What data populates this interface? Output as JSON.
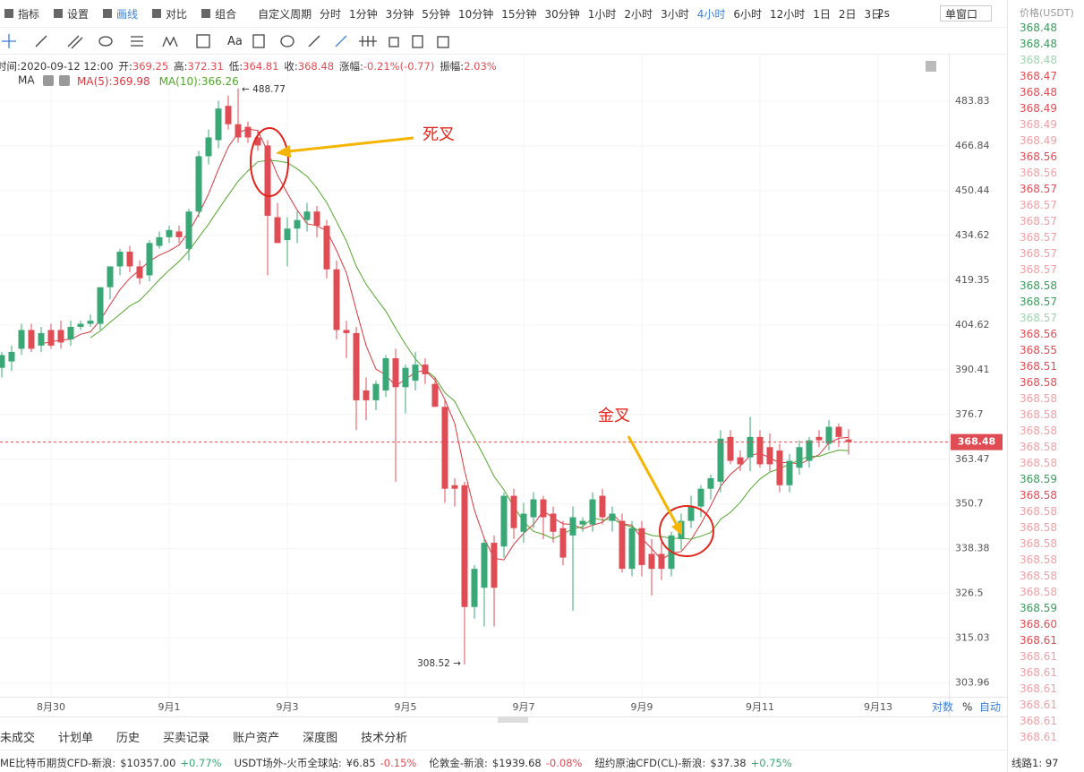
{
  "toolbar": {
    "tools": [
      "指标",
      "设置",
      "画线",
      "对比",
      "组合"
    ],
    "custom": "自定义周期",
    "periods": [
      "分时",
      "1分钟",
      "3分钟",
      "5分钟",
      "10分钟",
      "15分钟",
      "30分钟",
      "1小时",
      "2小时",
      "3小时",
      "4小时",
      "6小时",
      "12小时",
      "1日",
      "2日",
      "3日"
    ],
    "active": 10,
    "refresh": "2s",
    "window": "单窗口",
    "font_tool": "Aa"
  },
  "info": [
    {
      "label": "时间:",
      "value": "2020-09-12 12:00"
    },
    {
      "label": "开:",
      "value": "369.25"
    },
    {
      "label": "高:",
      "value": "372.31"
    },
    {
      "label": "低:",
      "value": "364.81"
    },
    {
      "label": "收:",
      "value": "368.48"
    },
    {
      "label": "涨幅:",
      "value": "-0.21%(-0.77)"
    },
    {
      "label": "振幅:",
      "value": "2.03%"
    }
  ],
  "chart_data": {
    "type": "candlestick",
    "open": [
      391,
      393,
      397,
      403,
      398,
      403,
      403,
      400,
      404,
      405,
      405,
      417,
      424,
      429,
      424,
      421,
      431,
      434,
      436,
      430,
      443,
      463,
      469,
      482,
      475,
      474,
      470,
      467,
      441,
      433,
      437,
      440,
      443,
      438,
      423,
      403,
      402,
      384,
      381,
      384,
      394,
      385,
      387,
      392,
      386,
      379,
      356,
      356,
      323,
      328,
      340,
      339,
      353,
      343,
      347,
      352,
      348,
      344,
      342,
      345,
      345,
      353,
      346,
      346,
      333,
      344,
      337,
      337,
      333,
      341,
      346,
      350,
      355,
      357,
      370,
      364,
      364,
      370,
      367,
      366,
      356,
      361,
      363,
      370,
      368,
      373,
      369.25
    ],
    "high": [
      396,
      398,
      405,
      405,
      404,
      405,
      406,
      406,
      406,
      408,
      417,
      424,
      430,
      431,
      426,
      433,
      436,
      438,
      438,
      444,
      465,
      473,
      484,
      486,
      488.77,
      476,
      473,
      469,
      446,
      441,
      443,
      446,
      445,
      440,
      426,
      406,
      404,
      388,
      387,
      395,
      397,
      392,
      396,
      394,
      388,
      381,
      358,
      357,
      334,
      341,
      342,
      354,
      355,
      351,
      354,
      353,
      350,
      346,
      350,
      347,
      354,
      355,
      350,
      348,
      346,
      346,
      341,
      340,
      343,
      348,
      353,
      356,
      359,
      372,
      372,
      366,
      376,
      372,
      371,
      368,
      365,
      369,
      370,
      372,
      375,
      374,
      372.31
    ],
    "low": [
      388,
      390,
      395,
      396,
      396,
      397,
      397,
      398,
      403,
      404,
      403,
      413,
      421,
      422,
      418,
      419,
      430,
      432,
      432,
      426,
      441,
      460,
      466,
      473,
      468,
      468,
      465,
      421,
      432,
      424,
      432,
      436,
      434,
      420,
      400,
      394,
      372,
      375,
      378,
      382,
      357,
      377,
      384,
      386,
      379,
      351,
      350,
      308.52,
      320,
      318,
      318,
      336,
      341,
      340,
      344,
      341,
      340,
      334,
      322,
      343,
      343,
      345,
      343,
      332,
      331,
      331,
      326,
      330,
      331,
      338,
      344,
      347,
      352,
      354,
      362,
      360,
      360,
      361,
      360,
      354,
      354,
      359,
      361,
      367,
      366,
      367,
      364.81
    ],
    "close": [
      395,
      396,
      403,
      397,
      402,
      398,
      399,
      404,
      405,
      406,
      417,
      424,
      429,
      424,
      420,
      432,
      434,
      436.5,
      434,
      443,
      463,
      470,
      481,
      475,
      470,
      470,
      467,
      441.5,
      432,
      437,
      440,
      443,
      438,
      423,
      403,
      402,
      381,
      381,
      386,
      394,
      385,
      391,
      392,
      389,
      379,
      355,
      355,
      323,
      333,
      340,
      328,
      353,
      344,
      348,
      352,
      347,
      343,
      336,
      347,
      346,
      352,
      347,
      348,
      333,
      344,
      334,
      333,
      333,
      342,
      346,
      350,
      355,
      358,
      369.5,
      363,
      362,
      370,
      362,
      362,
      356,
      363,
      367,
      369,
      369,
      373,
      370,
      368.48
    ],
    "up_color": "#3aa876",
    "down_color": "#e04c54",
    "ylim": [
      300,
      500
    ],
    "log": true,
    "yticks": [
      483.83,
      466.84,
      450.44,
      434.62,
      419.35,
      404.62,
      390.41,
      376.7,
      363.47,
      350.7,
      338.38,
      326.5,
      315.03,
      303.96
    ],
    "xticks": [
      {
        "value": 5,
        "label": "8月30"
      },
      {
        "value": 17,
        "label": "9月1"
      },
      {
        "value": 29,
        "label": "9月3"
      },
      {
        "value": 41,
        "label": "9月5"
      },
      {
        "value": 53,
        "label": "9月7"
      },
      {
        "value": 65,
        "label": "9月9"
      },
      {
        "value": 77,
        "label": "9月11"
      },
      {
        "value": 89,
        "label": "9月13"
      }
    ],
    "ma_title": "MA",
    "ma_lines": [
      {
        "label": "MA(5):369.98",
        "period": 5,
        "color": "#d9363e"
      },
      {
        "label": "MA(10):366.26",
        "period": 10,
        "color": "#52a62c"
      }
    ],
    "high_label": "← 488.77",
    "low_label": "308.52 →",
    "annotations": [
      "死叉",
      "金叉"
    ],
    "axis_options": [
      "对数",
      "%",
      "自动"
    ]
  },
  "tabs": [
    "未成交",
    "计划单",
    "历史",
    "买卖记录",
    "账户资产",
    "深度图",
    "技术分析"
  ],
  "status": [
    {
      "name": "ME比特币期货CFD-新浪:",
      "price": "$10357.00",
      "change": "+0.77%",
      "color": "#3aa876"
    },
    {
      "name": "USDT场外-火币全球站:",
      "price": "¥6.85",
      "change": "-0.15%",
      "color": "#e04c54"
    },
    {
      "name": "伦敦金-新浪:",
      "price": "$1939.68",
      "change": "-0.08%",
      "color": "#e04c54"
    },
    {
      "name": "纽约原油CFD(CL)-新浪:",
      "price": "$37.38",
      "change": "+0.75%",
      "color": "#3aa876"
    }
  ],
  "line_status": "线路1: 97",
  "panel": {
    "header": "价格(USDT)",
    "rows": [
      {
        "price": "368.48",
        "color": "#3a9b5c"
      },
      {
        "price": "368.48",
        "color": "#3a9b5c"
      },
      {
        "price": "368.48",
        "color": "#9fd3b1"
      },
      {
        "price": "368.47",
        "color": "#e04c54"
      },
      {
        "price": "368.48",
        "color": "#e04c54"
      },
      {
        "price": "368.49",
        "color": "#e04c54"
      },
      {
        "price": "368.49",
        "color": "#f0a0a5"
      },
      {
        "price": "368.49",
        "color": "#f0a0a5"
      },
      {
        "price": "368.56",
        "color": "#e04c54"
      },
      {
        "price": "368.56",
        "color": "#f0a0a5"
      },
      {
        "price": "368.57",
        "color": "#e04c54"
      },
      {
        "price": "368.57",
        "color": "#f0a0a5"
      },
      {
        "price": "368.57",
        "color": "#f0a0a5"
      },
      {
        "price": "368.57",
        "color": "#f0a0a5"
      },
      {
        "price": "368.57",
        "color": "#f0a0a5"
      },
      {
        "price": "368.57",
        "color": "#f0a0a5"
      },
      {
        "price": "368.58",
        "color": "#3a9b5c"
      },
      {
        "price": "368.57",
        "color": "#3a9b5c"
      },
      {
        "price": "368.57",
        "color": "#9fd3b1"
      },
      {
        "price": "368.56",
        "color": "#e04c54"
      },
      {
        "price": "368.55",
        "color": "#e04c54"
      },
      {
        "price": "368.51",
        "color": "#e04c54"
      },
      {
        "price": "368.58",
        "color": "#e04c54"
      },
      {
        "price": "368.58",
        "color": "#f0a0a5"
      },
      {
        "price": "368.58",
        "color": "#f0a0a5"
      },
      {
        "price": "368.58",
        "color": "#f0a0a5"
      },
      {
        "price": "368.58",
        "color": "#f0a0a5"
      },
      {
        "price": "368.58",
        "color": "#f0a0a5"
      },
      {
        "price": "368.59",
        "color": "#3a9b5c"
      },
      {
        "price": "368.58",
        "color": "#e04c54"
      },
      {
        "price": "368.58",
        "color": "#f0a0a5"
      },
      {
        "price": "368.58",
        "color": "#f0a0a5"
      },
      {
        "price": "368.58",
        "color": "#f0a0a5"
      },
      {
        "price": "368.58",
        "color": "#f0a0a5"
      },
      {
        "price": "368.58",
        "color": "#f0a0a5"
      },
      {
        "price": "368.58",
        "color": "#f0a0a5"
      },
      {
        "price": "368.59",
        "color": "#3a9b5c"
      },
      {
        "price": "368.60",
        "color": "#e04c54"
      },
      {
        "price": "368.61",
        "color": "#e04c54"
      },
      {
        "price": "368.61",
        "color": "#f0a0a5"
      },
      {
        "price": "368.61",
        "color": "#f0a0a5"
      },
      {
        "price": "368.61",
        "color": "#f0a0a5"
      },
      {
        "price": "368.61",
        "color": "#f0a0a5"
      },
      {
        "price": "368.61",
        "color": "#f0a0a5"
      },
      {
        "price": "368.61",
        "color": "#f0a0a5"
      }
    ]
  }
}
